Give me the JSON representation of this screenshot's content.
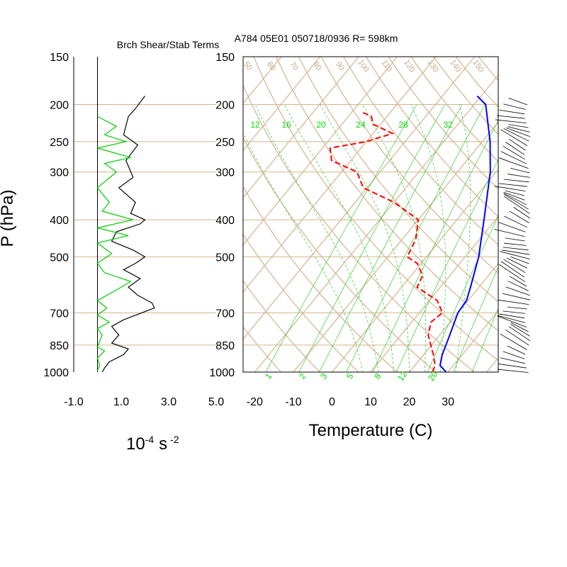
{
  "header": {
    "left_title": "Brch Shear/Stab Terms",
    "right_title": "A784 05E01 050718/0936 R= 598km"
  },
  "colors": {
    "background_lines": "#d2b48c",
    "shear_term": "#000000",
    "stability_term": "#00cc00",
    "dewpoint": "#ff0000",
    "temperature": "#0000ff",
    "mixing_ratio": "#33cc33",
    "wind_barbs": "#000000"
  },
  "chart_data": [
    {
      "type": "line",
      "title": "Brch Shear/Stab Terms",
      "xlabel_base": "10",
      "xlabel_exp1": "-4",
      "xlabel_unit": "s",
      "xlabel_exp2": "-2",
      "ylabel": "P (hPa)",
      "xlim": [
        -1.0,
        5.0
      ],
      "x_ticks": [
        -1.0,
        1.0,
        3.0,
        5.0
      ],
      "x_tick_labels": [
        "-1.0",
        "1.0",
        "3.0",
        "5.0"
      ],
      "y_scale": "log",
      "ylim": [
        1000,
        150
      ],
      "y_ticks": [
        150,
        200,
        250,
        300,
        400,
        500,
        700,
        850,
        1000
      ],
      "y_tick_labels": [
        "150",
        "200",
        "250",
        "300",
        "400",
        "500",
        "700",
        "850",
        "1000"
      ],
      "reference_x": 0.0,
      "series": [
        {
          "color": "#000000",
          "points": [
            [
              0.2,
              1000
            ],
            [
              0.3,
              975
            ],
            [
              0.5,
              940
            ],
            [
              1.1,
              900
            ],
            [
              1.3,
              870
            ],
            [
              0.6,
              840
            ],
            [
              0.9,
              800
            ],
            [
              0.6,
              760
            ],
            [
              1.1,
              730
            ],
            [
              2.4,
              680
            ],
            [
              2.3,
              660
            ],
            [
              1.7,
              630
            ],
            [
              1.3,
              600
            ],
            [
              1.8,
              570
            ],
            [
              1.1,
              540
            ],
            [
              1.6,
              520
            ],
            [
              2.0,
              500
            ],
            [
              1.5,
              480
            ],
            [
              0.6,
              455
            ],
            [
              0.8,
              430
            ],
            [
              1.8,
              410
            ],
            [
              2.0,
              400
            ],
            [
              1.4,
              385
            ],
            [
              1.6,
              360
            ],
            [
              0.9,
              330
            ],
            [
              1.5,
              310
            ],
            [
              1.2,
              280
            ],
            [
              1.7,
              255
            ],
            [
              1.1,
              240
            ],
            [
              1.3,
              215
            ],
            [
              1.6,
              205
            ],
            [
              2.0,
              190
            ]
          ]
        },
        {
          "color": "#00cc00",
          "points": [
            [
              0.0,
              990
            ],
            [
              0.1,
              960
            ],
            [
              0.0,
              920
            ],
            [
              0.3,
              880
            ],
            [
              0.0,
              860
            ],
            [
              0.2,
              800
            ],
            [
              0.0,
              770
            ],
            [
              0.5,
              740
            ],
            [
              0.0,
              710
            ],
            [
              0.4,
              680
            ],
            [
              0.0,
              650
            ],
            [
              0.8,
              610
            ],
            [
              1.4,
              580
            ],
            [
              0.3,
              550
            ],
            [
              0.0,
              520
            ],
            [
              0.6,
              490
            ],
            [
              0.0,
              460
            ],
            [
              1.3,
              440
            ],
            [
              0.0,
              420
            ],
            [
              1.5,
              400
            ],
            [
              0.2,
              380
            ],
            [
              0.5,
              360
            ],
            [
              0.0,
              330
            ],
            [
              0.8,
              300
            ],
            [
              0.3,
              285
            ],
            [
              1.4,
              275
            ],
            [
              0.0,
              260
            ],
            [
              1.2,
              250
            ],
            [
              0.3,
              240
            ],
            [
              0.8,
              228
            ],
            [
              0.0,
              215
            ]
          ]
        }
      ]
    },
    {
      "type": "line",
      "title": "A784 05E01 050718/0936 R= 598km",
      "subtype": "skew-T log-P",
      "xlabel": "Temperature (C)",
      "x_ticks": [
        -20,
        -10,
        0,
        10,
        20,
        30
      ],
      "x_tick_labels": [
        "-20",
        "-10",
        "0",
        "10",
        "20",
        "30"
      ],
      "xlim": [
        -23,
        43
      ],
      "y_scale": "log",
      "ylim": [
        1000,
        150
      ],
      "y_ticks": [
        150,
        200,
        250,
        300,
        400,
        500,
        700,
        850,
        1000
      ],
      "y_tick_labels": [
        "150",
        "200",
        "250",
        "300",
        "400",
        "500",
        "700",
        "850",
        "1000"
      ],
      "mixing_ratio_labels_top": [
        "12",
        "16",
        "20",
        "24",
        "28",
        "32"
      ],
      "mixing_ratio_labels_bottom": [
        "1",
        "2",
        "3",
        "5",
        "8",
        "12",
        "20"
      ],
      "dry_adiabat_labels": [
        "50",
        "60",
        "70",
        "80",
        "90",
        "100",
        "110",
        "120",
        "130",
        "140",
        "150"
      ],
      "series": [
        {
          "name": "temperature",
          "color": "#0000ff",
          "style": "solid",
          "points": [
            [
              29.5,
              1000
            ],
            [
              26.5,
              960
            ],
            [
              24.8,
              900
            ],
            [
              22.6,
              800
            ],
            [
              20.0,
              700
            ],
            [
              19.6,
              650
            ],
            [
              17.8,
              600
            ],
            [
              13.5,
              500
            ],
            [
              7.0,
              400
            ],
            [
              -1.5,
              300
            ],
            [
              -8.0,
              250
            ],
            [
              -17.0,
              200
            ],
            [
              -21.0,
              190
            ]
          ]
        },
        {
          "name": "dewpoint",
          "color": "#ff0000",
          "style": "dashed",
          "points": [
            [
              26.0,
              1000
            ],
            [
              25.2,
              960
            ],
            [
              22.5,
              900
            ],
            [
              17.0,
              800
            ],
            [
              15.0,
              740
            ],
            [
              16.0,
              700
            ],
            [
              12.0,
              650
            ],
            [
              4.0,
              600
            ],
            [
              3.0,
              560
            ],
            [
              -1.0,
              520
            ],
            [
              -5.0,
              500
            ],
            [
              -6.5,
              450
            ],
            [
              -10.0,
              400
            ],
            [
              -20.0,
              360
            ],
            [
              -31.0,
              330
            ],
            [
              -36.0,
              300
            ],
            [
              -45.0,
              280
            ],
            [
              -48.0,
              260
            ],
            [
              -40.0,
              250
            ],
            [
              -35.0,
              238
            ],
            [
              -42.0,
              225
            ],
            [
              -44.0,
              215
            ],
            [
              -47.0,
              210
            ]
          ]
        }
      ]
    }
  ]
}
